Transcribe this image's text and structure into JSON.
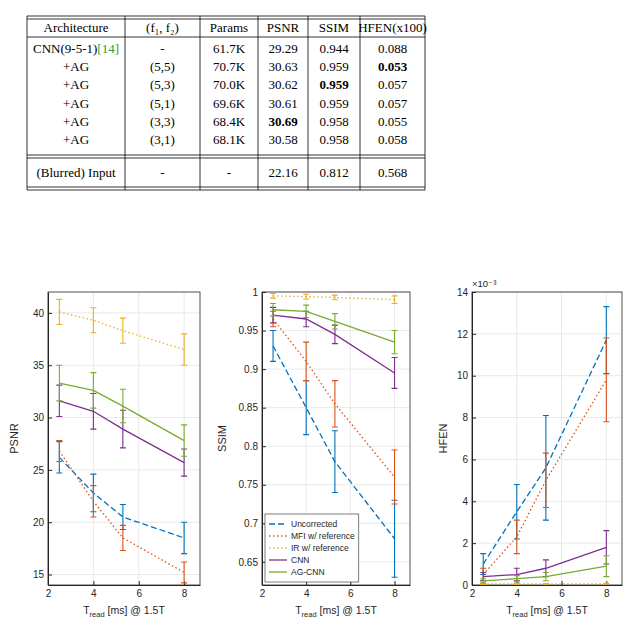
{
  "table": {
    "columns": [
      "Architecture",
      "(f₁, f₂)",
      "Params",
      "PSNR",
      "SSIM",
      "HFEN(x100)"
    ],
    "rows": [
      [
        {
          "text": "CNN(9-5-1)",
          "ref": "[14]"
        },
        "-",
        "61.7K",
        "29.29",
        "0.944",
        "0.088"
      ],
      [
        "+AG",
        "(5,5)",
        "70.7K",
        "30.63",
        "0.959",
        {
          "text": "0.053",
          "bold": true
        }
      ],
      [
        "+AG",
        "(5,3)",
        "70.0K",
        "30.62",
        {
          "text": "0.959",
          "bold": true
        },
        "0.057"
      ],
      [
        "+AG",
        "(5,1)",
        "69.6K",
        "30.61",
        "0.959",
        "0.057"
      ],
      [
        "+AG",
        "(3,3)",
        "68.4K",
        {
          "text": "30.69",
          "bold": true
        },
        "0.958",
        "0.055"
      ],
      [
        "+AG",
        "(3,1)",
        "68.1K",
        "30.58",
        "0.958",
        "0.058"
      ]
    ],
    "footer_rows": [
      [
        "(Blurred) Input",
        "-",
        "-",
        "22.16",
        "0.812",
        "0.568"
      ]
    ]
  },
  "chart_data": [
    {
      "type": "line",
      "ylabel": "PSNR",
      "xlabel": [
        {
          "text": "T"
        },
        {
          "text": "read",
          "sub": true
        },
        {
          "text": " [ms] @ 1.5T"
        }
      ],
      "x": [
        2.5,
        4,
        5.3,
        8
      ],
      "xlim": [
        2,
        8.7
      ],
      "xticks": [
        2,
        4,
        6,
        8
      ],
      "ylim": [
        14,
        42
      ],
      "yticks": [
        15,
        20,
        25,
        30,
        35,
        40
      ],
      "grid": true,
      "series": [
        {
          "color": "#0072bd",
          "line_style": "dashed",
          "values": [
            26.2,
            22.8,
            20.5,
            18.5
          ],
          "error": [
            1.5,
            1.8,
            1.2,
            1.5
          ]
        },
        {
          "color": "#d95319",
          "line_style": "dotted",
          "values": [
            26.8,
            22.0,
            18.5,
            15.2
          ],
          "error": [
            1.0,
            1.5,
            1.2,
            1.0
          ]
        },
        {
          "color": "#edb120",
          "line_style": "dotted",
          "values": [
            40.1,
            39.3,
            38.3,
            36.5
          ],
          "error": [
            1.2,
            1.2,
            1.2,
            1.5
          ]
        },
        {
          "color": "#7e2f8e",
          "line_style": "solid",
          "values": [
            31.6,
            30.6,
            28.9,
            25.7
          ],
          "error": [
            1.5,
            1.7,
            1.8,
            1.3
          ]
        },
        {
          "color": "#77ac30",
          "line_style": "solid",
          "values": [
            33.3,
            32.6,
            31.1,
            27.8
          ],
          "error": [
            1.7,
            1.7,
            1.6,
            1.5
          ]
        }
      ]
    },
    {
      "type": "line",
      "ylabel": "SSIM",
      "xlabel": [
        {
          "text": "T"
        },
        {
          "text": "read",
          "sub": true
        },
        {
          "text": " [ms] @ 1.5T"
        }
      ],
      "x": [
        2.5,
        4,
        5.3,
        8
      ],
      "xlim": [
        2,
        8.7
      ],
      "xticks": [
        2,
        4,
        6,
        8
      ],
      "ylim": [
        0.62,
        1
      ],
      "yticks": [
        0.65,
        0.7,
        0.75,
        0.8,
        0.85,
        0.9,
        0.95,
        1
      ],
      "grid": true,
      "legend": "lower left",
      "series": [
        {
          "name": "Uncorrected",
          "color": "#0072bd",
          "line_style": "dashed",
          "values": [
            0.93,
            0.85,
            0.78,
            0.68
          ],
          "error": [
            0.02,
            0.035,
            0.04,
            0.05
          ]
        },
        {
          "name": "MFI w/ reference",
          "color": "#d95319",
          "line_style": "dotted",
          "values": [
            0.965,
            0.91,
            0.855,
            0.76
          ],
          "error": [
            0.01,
            0.025,
            0.03,
            0.035
          ]
        },
        {
          "name": "IR w/ reference",
          "color": "#edb120",
          "line_style": "dotted",
          "values": [
            0.995,
            0.994,
            0.993,
            0.99
          ],
          "error": [
            0.003,
            0.003,
            0.003,
            0.005
          ]
        },
        {
          "name": "CNN",
          "color": "#7e2f8e",
          "line_style": "solid",
          "values": [
            0.97,
            0.965,
            0.945,
            0.895
          ],
          "error": [
            0.01,
            0.01,
            0.012,
            0.02
          ]
        },
        {
          "name": "AG-CNN",
          "color": "#77ac30",
          "line_style": "solid",
          "values": [
            0.977,
            0.975,
            0.962,
            0.935
          ],
          "error": [
            0.008,
            0.008,
            0.01,
            0.015
          ]
        }
      ]
    },
    {
      "type": "line",
      "ylabel": "HFEN",
      "xlabel": [
        {
          "text": "T"
        },
        {
          "text": "read",
          "sub": true
        },
        {
          "text": " [ms] @ 1.5T"
        }
      ],
      "annotations": [
        "×10⁻³"
      ],
      "x": [
        2.5,
        4,
        5.3,
        8
      ],
      "xlim": [
        2,
        8.7
      ],
      "xticks": [
        2,
        4,
        6,
        8
      ],
      "ylim": [
        0,
        0.014
      ],
      "yticks": [
        0,
        {
          "value": 0.002,
          "label": "2"
        },
        {
          "value": 0.004,
          "label": "4"
        },
        {
          "value": 0.006,
          "label": "6"
        },
        {
          "value": 0.008,
          "label": "8"
        },
        {
          "value": 0.01,
          "label": "10"
        },
        {
          "value": 0.012,
          "label": "12"
        },
        {
          "value": 0.014,
          "label": "14"
        }
      ],
      "grid": true,
      "series": [
        {
          "color": "#0072bd",
          "line_style": "dashed",
          "values": [
            0.001,
            0.0035,
            0.0056,
            0.0117
          ],
          "error": [
            0.0005,
            0.0013,
            0.0025,
            0.0016
          ]
        },
        {
          "color": "#d95319",
          "line_style": "dotted",
          "values": [
            0.0005,
            0.0023,
            0.005,
            0.0098
          ],
          "error": [
            0.0003,
            0.0008,
            0.0013,
            0.002
          ]
        },
        {
          "color": "#edb120",
          "line_style": "dotted",
          "values": [
            5e-05,
            5e-05,
            5e-05,
            6e-05
          ],
          "error": [
            2e-05,
            2e-05,
            2e-05,
            2e-05
          ]
        },
        {
          "color": "#7e2f8e",
          "line_style": "solid",
          "values": [
            0.0004,
            0.0005,
            0.0008,
            0.0018
          ],
          "error": [
            0.0002,
            0.0003,
            0.0004,
            0.0008
          ]
        },
        {
          "color": "#77ac30",
          "line_style": "solid",
          "values": [
            0.0002,
            0.0003,
            0.0004,
            0.0009
          ],
          "error": [
            0.0001,
            0.00015,
            0.0002,
            0.0005
          ]
        }
      ]
    }
  ]
}
